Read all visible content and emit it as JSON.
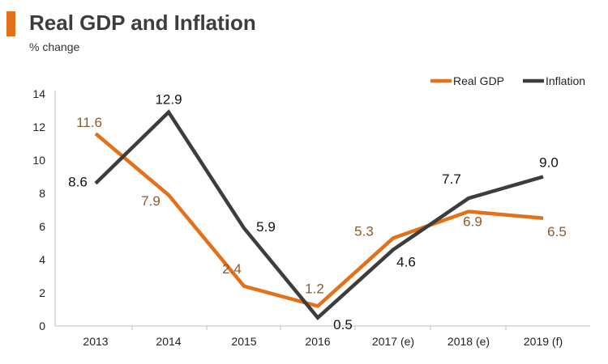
{
  "title": "Real GDP and Inflation",
  "subtitle": "% change",
  "colors": {
    "accent": "#e3711a",
    "gdp": "#e3711a",
    "inflation": "#3d3d3d",
    "gdp_label": "#8c5a2b",
    "inflation_label": "#111111"
  },
  "chart_data": {
    "type": "line",
    "title": "Real GDP and Inflation",
    "subtitle": "% change",
    "categories": [
      "2013",
      "2014",
      "2015",
      "2016",
      "2017 (e)",
      "2018 (e)",
      "2019 (f)"
    ],
    "ylim": [
      0,
      14
    ],
    "yticks": [
      0,
      2,
      4,
      6,
      8,
      10,
      12,
      14
    ],
    "grid": false,
    "legend": "top-right",
    "series": [
      {
        "name": "Real GDP",
        "color": "#e3711a",
        "values": [
          11.6,
          7.9,
          2.4,
          1.2,
          5.3,
          6.9,
          6.5
        ],
        "labels": [
          "11.6",
          "7.9",
          "2.4",
          "1.2",
          "5.3",
          "6.9",
          "6.5"
        ]
      },
      {
        "name": "Inflation",
        "color": "#3d3d3d",
        "values": [
          8.6,
          12.9,
          5.9,
          0.5,
          4.6,
          7.7,
          9.0
        ],
        "labels": [
          "8.6",
          "12.9",
          "5.9",
          "0.5",
          "4.6",
          "7.7",
          "9.0"
        ]
      }
    ]
  }
}
